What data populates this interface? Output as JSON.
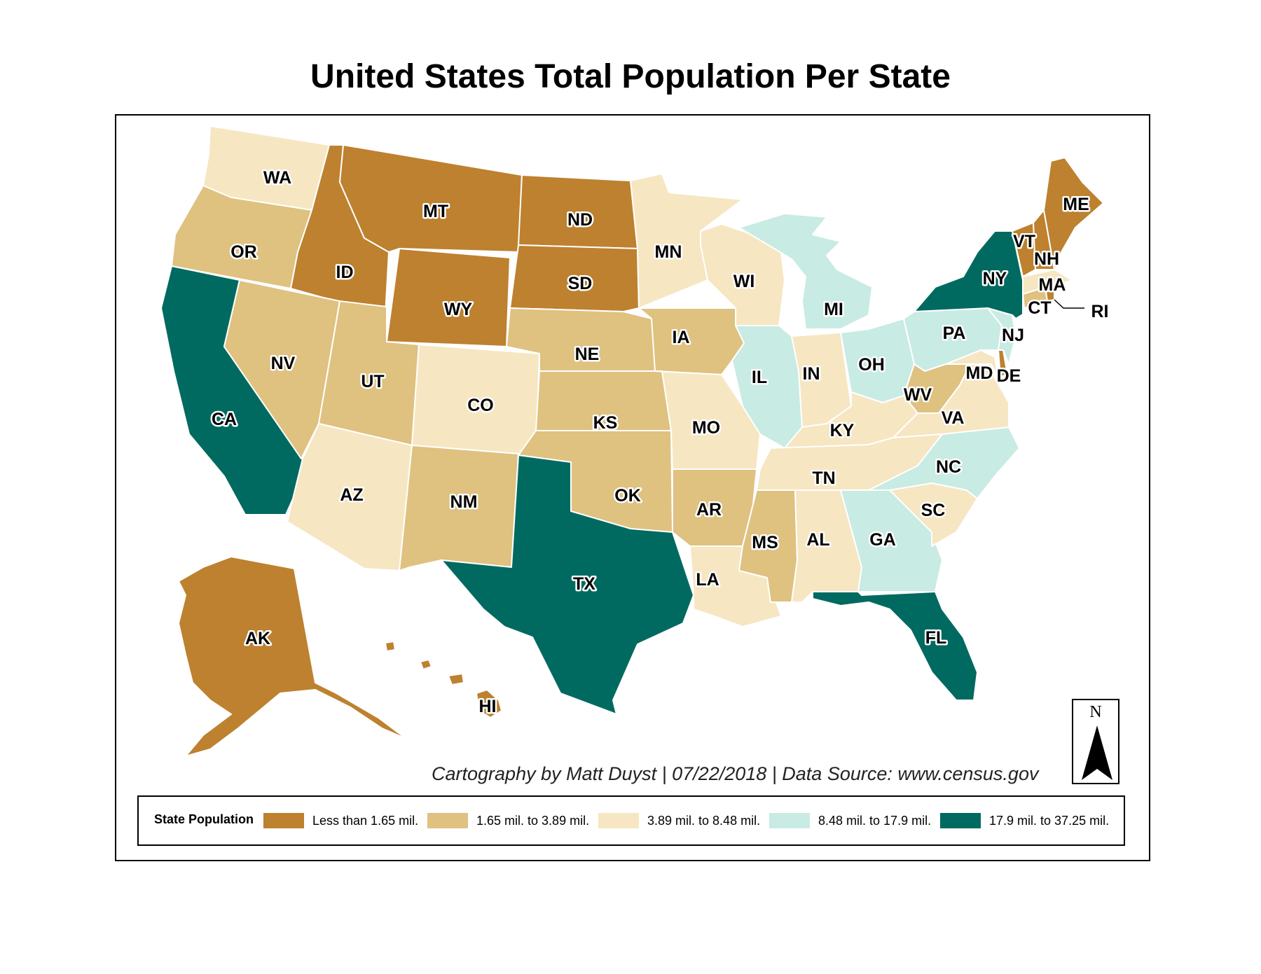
{
  "title": "United States Total Population Per State",
  "credit": "Cartography by Matt Duyst | 07/22/2018 | Data Source: www.census.gov",
  "north_label": "N",
  "legend": {
    "title": "State Population",
    "classes": [
      {
        "label": "Less than 1.65 mil.",
        "color": "#bd812f"
      },
      {
        "label": "1.65 mil. to 3.89 mil.",
        "color": "#dfc180"
      },
      {
        "label": "3.89 mil. to 8.48 mil.",
        "color": "#f6e6c2"
      },
      {
        "label": "8.48 mil. to 17.9 mil.",
        "color": "#c8ebe4"
      },
      {
        "label": "17.9 mil. to 37.25 mil.",
        "color": "#006a60"
      }
    ]
  },
  "states": {
    "WA": {
      "label": "WA",
      "class": 2
    },
    "OR": {
      "label": "OR",
      "class": 1
    },
    "CA": {
      "label": "CA",
      "class": 4
    },
    "ID": {
      "label": "ID",
      "class": 0
    },
    "NV": {
      "label": "NV",
      "class": 1
    },
    "MT": {
      "label": "MT",
      "class": 0
    },
    "WY": {
      "label": "WY",
      "class": 0
    },
    "UT": {
      "label": "UT",
      "class": 1
    },
    "AZ": {
      "label": "AZ",
      "class": 2
    },
    "CO": {
      "label": "CO",
      "class": 2
    },
    "NM": {
      "label": "NM",
      "class": 1
    },
    "ND": {
      "label": "ND",
      "class": 0
    },
    "SD": {
      "label": "SD",
      "class": 0
    },
    "NE": {
      "label": "NE",
      "class": 1
    },
    "KS": {
      "label": "KS",
      "class": 1
    },
    "OK": {
      "label": "OK",
      "class": 1
    },
    "TX": {
      "label": "TX",
      "class": 4
    },
    "MN": {
      "label": "MN",
      "class": 2
    },
    "IA": {
      "label": "IA",
      "class": 1
    },
    "MO": {
      "label": "MO",
      "class": 2
    },
    "AR": {
      "label": "AR",
      "class": 1
    },
    "LA": {
      "label": "LA",
      "class": 2
    },
    "WI": {
      "label": "WI",
      "class": 2
    },
    "IL": {
      "label": "IL",
      "class": 3
    },
    "MI": {
      "label": "MI",
      "class": 3
    },
    "IN": {
      "label": "IN",
      "class": 2
    },
    "OH": {
      "label": "OH",
      "class": 3
    },
    "KY": {
      "label": "KY",
      "class": 2
    },
    "TN": {
      "label": "TN",
      "class": 2
    },
    "MS": {
      "label": "MS",
      "class": 1
    },
    "AL": {
      "label": "AL",
      "class": 2
    },
    "GA": {
      "label": "GA",
      "class": 3
    },
    "FL": {
      "label": "FL",
      "class": 4
    },
    "SC": {
      "label": "SC",
      "class": 2
    },
    "NC": {
      "label": "NC",
      "class": 3
    },
    "VA": {
      "label": "VA",
      "class": 2
    },
    "WV": {
      "label": "WV",
      "class": 1
    },
    "MD": {
      "label": "MD",
      "class": 2
    },
    "DE": {
      "label": "DE",
      "class": 0
    },
    "PA": {
      "label": "PA",
      "class": 3
    },
    "NJ": {
      "label": "NJ",
      "class": 3
    },
    "NY": {
      "label": "NY",
      "class": 4
    },
    "CT": {
      "label": "CT",
      "class": 1
    },
    "RI": {
      "label": "RI",
      "class": 0
    },
    "MA": {
      "label": "MA",
      "class": 2
    },
    "VT": {
      "label": "VT",
      "class": 0
    },
    "NH": {
      "label": "NH",
      "class": 0
    },
    "ME": {
      "label": "ME",
      "class": 0
    },
    "AK": {
      "label": "AK",
      "class": 0
    },
    "HI": {
      "label": "HI",
      "class": 0
    }
  }
}
